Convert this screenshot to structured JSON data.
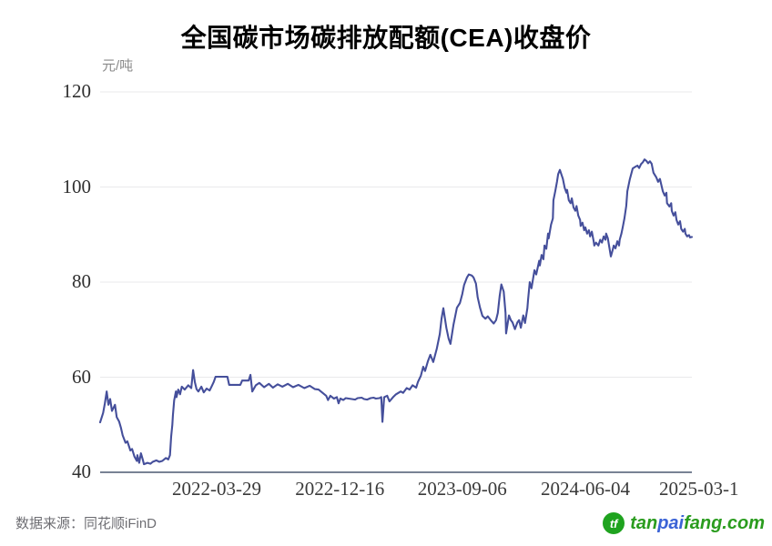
{
  "header": {
    "title": "全国碳市场碳排放配额(CEA)收盘价"
  },
  "chart_data": {
    "type": "line",
    "title": "全国碳市场碳排放配额(CEA)收盘价",
    "unit_label": "元/吨",
    "ylabel": "元/吨",
    "ylim": [
      40,
      120
    ],
    "yticks": [
      120,
      100,
      80,
      60,
      40
    ],
    "grid": true,
    "legend": "none",
    "line_color": "#454f9b",
    "grid_color": "#e9e9eb",
    "axis_color": "#4b5870",
    "xticks": [
      {
        "label": "2022-03-29",
        "pos": 0.197
      },
      {
        "label": "2022-12-16",
        "pos": 0.405
      },
      {
        "label": "2023-09-06",
        "pos": 0.612
      },
      {
        "label": "2024-06-04",
        "pos": 0.82
      },
      {
        "label": "2025-03-1",
        "pos": 1.012
      }
    ],
    "series": [
      {
        "name": "CEA收盘价",
        "x_encoding": "fraction of time axis (2021-07-16 → 2025-03)",
        "points": [
          [
            0,
            50.5
          ],
          [
            0.005,
            52.5
          ],
          [
            0.008,
            54.5
          ],
          [
            0.011,
            57
          ],
          [
            0.014,
            54.2
          ],
          [
            0.017,
            55.4
          ],
          [
            0.02,
            52.9
          ],
          [
            0.025,
            54.2
          ],
          [
            0.028,
            51.6
          ],
          [
            0.032,
            50.7
          ],
          [
            0.035,
            49.4
          ],
          [
            0.038,
            47.8
          ],
          [
            0.043,
            46.2
          ],
          [
            0.046,
            46.5
          ],
          [
            0.051,
            44.6
          ],
          [
            0.054,
            44.9
          ],
          [
            0.058,
            43.3
          ],
          [
            0.062,
            42.4
          ],
          [
            0.063,
            43.6
          ],
          [
            0.066,
            42
          ],
          [
            0.069,
            44
          ],
          [
            0.072,
            42.7
          ],
          [
            0.074,
            41.7
          ],
          [
            0.08,
            42
          ],
          [
            0.085,
            41.8
          ],
          [
            0.089,
            42.2
          ],
          [
            0.095,
            42.5
          ],
          [
            0.1,
            42.2
          ],
          [
            0.105,
            42.4
          ],
          [
            0.111,
            43
          ],
          [
            0.115,
            42.7
          ],
          [
            0.118,
            43.6
          ],
          [
            0.12,
            47.5
          ],
          [
            0.122,
            50
          ],
          [
            0.123,
            51.9
          ],
          [
            0.125,
            55.1
          ],
          [
            0.128,
            57
          ],
          [
            0.129,
            55.8
          ],
          [
            0.132,
            57.4
          ],
          [
            0.135,
            56.4
          ],
          [
            0.138,
            58
          ],
          [
            0.143,
            57.4
          ],
          [
            0.149,
            58.3
          ],
          [
            0.154,
            57.7
          ],
          [
            0.157,
            61.5
          ],
          [
            0.16,
            59
          ],
          [
            0.163,
            57.5
          ],
          [
            0.166,
            57
          ],
          [
            0.171,
            58
          ],
          [
            0.175,
            56.8
          ],
          [
            0.18,
            57.6
          ],
          [
            0.185,
            57.2
          ],
          [
            0.189,
            58.2
          ],
          [
            0.192,
            59
          ],
          [
            0.195,
            60.1
          ],
          [
            0.215,
            60.1
          ],
          [
            0.218,
            58.4
          ],
          [
            0.237,
            58.4
          ],
          [
            0.24,
            59.3
          ],
          [
            0.251,
            59.3
          ],
          [
            0.254,
            60.5
          ],
          [
            0.257,
            57
          ],
          [
            0.263,
            58.3
          ],
          [
            0.269,
            58.8
          ],
          [
            0.277,
            57.9
          ],
          [
            0.285,
            58.6
          ],
          [
            0.292,
            57.8
          ],
          [
            0.3,
            58.5
          ],
          [
            0.308,
            58
          ],
          [
            0.317,
            58.6
          ],
          [
            0.326,
            57.9
          ],
          [
            0.335,
            58.4
          ],
          [
            0.345,
            57.7
          ],
          [
            0.354,
            58.2
          ],
          [
            0.363,
            57.5
          ],
          [
            0.369,
            57.4
          ],
          [
            0.382,
            56.1
          ],
          [
            0.385,
            55.2
          ],
          [
            0.389,
            56.1
          ],
          [
            0.395,
            55.5
          ],
          [
            0.4,
            55.8
          ],
          [
            0.403,
            54.5
          ],
          [
            0.406,
            55.5
          ],
          [
            0.411,
            55.2
          ],
          [
            0.415,
            55.6
          ],
          [
            0.42,
            55.5
          ],
          [
            0.425,
            55.4
          ],
          [
            0.431,
            55.3
          ],
          [
            0.435,
            55.6
          ],
          [
            0.442,
            55.7
          ],
          [
            0.446,
            55.4
          ],
          [
            0.451,
            55.3
          ],
          [
            0.457,
            55.6
          ],
          [
            0.462,
            55.7
          ],
          [
            0.466,
            55.5
          ],
          [
            0.472,
            55.6
          ],
          [
            0.475,
            55.8
          ],
          [
            0.477,
            50.6
          ],
          [
            0.48,
            55.8
          ],
          [
            0.485,
            56.1
          ],
          [
            0.489,
            54.9
          ],
          [
            0.495,
            55.8
          ],
          [
            0.5,
            56.4
          ],
          [
            0.508,
            57
          ],
          [
            0.512,
            56.7
          ],
          [
            0.518,
            57.7
          ],
          [
            0.523,
            57.4
          ],
          [
            0.528,
            58.3
          ],
          [
            0.534,
            57.8
          ],
          [
            0.537,
            59
          ],
          [
            0.542,
            60.3
          ],
          [
            0.546,
            62.2
          ],
          [
            0.549,
            61.3
          ],
          [
            0.554,
            63.4
          ],
          [
            0.558,
            64.7
          ],
          [
            0.563,
            63.2
          ],
          [
            0.569,
            66
          ],
          [
            0.574,
            69.1
          ],
          [
            0.577,
            72.3
          ],
          [
            0.58,
            74.5
          ],
          [
            0.585,
            70.4
          ],
          [
            0.589,
            68.1
          ],
          [
            0.592,
            67
          ],
          [
            0.597,
            71
          ],
          [
            0.603,
            74.6
          ],
          [
            0.608,
            75.6
          ],
          [
            0.612,
            77.5
          ],
          [
            0.615,
            79.4
          ],
          [
            0.62,
            81
          ],
          [
            0.623,
            81.6
          ],
          [
            0.628,
            81.4
          ],
          [
            0.631,
            81
          ],
          [
            0.635,
            79.7
          ],
          [
            0.638,
            76.8
          ],
          [
            0.642,
            74.6
          ],
          [
            0.646,
            72.9
          ],
          [
            0.651,
            72.3
          ],
          [
            0.655,
            72.8
          ],
          [
            0.66,
            72
          ],
          [
            0.665,
            71.3
          ],
          [
            0.669,
            72
          ],
          [
            0.672,
            73.5
          ],
          [
            0.675,
            77
          ],
          [
            0.678,
            79.5
          ],
          [
            0.682,
            78
          ],
          [
            0.685,
            73.5
          ],
          [
            0.686,
            69.2
          ],
          [
            0.689,
            71.5
          ],
          [
            0.691,
            73
          ],
          [
            0.694,
            72
          ],
          [
            0.697,
            71.5
          ],
          [
            0.701,
            70.1
          ],
          [
            0.705,
            71.5
          ],
          [
            0.708,
            72
          ],
          [
            0.711,
            70.4
          ],
          [
            0.715,
            73
          ],
          [
            0.718,
            71.4
          ],
          [
            0.722,
            74.5
          ],
          [
            0.723,
            76.2
          ],
          [
            0.726,
            80
          ],
          [
            0.729,
            78.7
          ],
          [
            0.734,
            82.5
          ],
          [
            0.737,
            81.6
          ],
          [
            0.742,
            84.5
          ],
          [
            0.743,
            83.5
          ],
          [
            0.746,
            85.7
          ],
          [
            0.749,
            84.8
          ],
          [
            0.751,
            87.7
          ],
          [
            0.754,
            87
          ],
          [
            0.757,
            90.2
          ],
          [
            0.758,
            89.2
          ],
          [
            0.762,
            92.1
          ],
          [
            0.765,
            93.4
          ],
          [
            0.766,
            97.2
          ],
          [
            0.769,
            99.1
          ],
          [
            0.772,
            101.1
          ],
          [
            0.774,
            102.7
          ],
          [
            0.777,
            103.6
          ],
          [
            0.782,
            101.7
          ],
          [
            0.785,
            99.8
          ],
          [
            0.788,
            98.8
          ],
          [
            0.789,
            99.4
          ],
          [
            0.792,
            97.2
          ],
          [
            0.795,
            96.6
          ],
          [
            0.797,
            97.6
          ],
          [
            0.8,
            95.7
          ],
          [
            0.803,
            95
          ],
          [
            0.805,
            96
          ],
          [
            0.808,
            94
          ],
          [
            0.811,
            93.1
          ],
          [
            0.812,
            91.8
          ],
          [
            0.815,
            92.5
          ],
          [
            0.818,
            90.9
          ],
          [
            0.82,
            91.5
          ],
          [
            0.823,
            90.2
          ],
          [
            0.826,
            90.9
          ],
          [
            0.828,
            89.6
          ],
          [
            0.831,
            90.6
          ],
          [
            0.834,
            88.6
          ],
          [
            0.835,
            87.7
          ],
          [
            0.838,
            88.3
          ],
          [
            0.842,
            87.7
          ],
          [
            0.845,
            88.9
          ],
          [
            0.848,
            88.3
          ],
          [
            0.851,
            89.6
          ],
          [
            0.854,
            88.9
          ],
          [
            0.855,
            90.2
          ],
          [
            0.858,
            89.2
          ],
          [
            0.86,
            87.7
          ],
          [
            0.863,
            85.4
          ],
          [
            0.866,
            86.7
          ],
          [
            0.868,
            87.7
          ],
          [
            0.871,
            87.1
          ],
          [
            0.874,
            88.6
          ],
          [
            0.877,
            87.7
          ],
          [
            0.878,
            88.9
          ],
          [
            0.881,
            90.2
          ],
          [
            0.883,
            91.5
          ],
          [
            0.886,
            93.4
          ],
          [
            0.889,
            96
          ],
          [
            0.891,
            99.1
          ],
          [
            0.895,
            101.6
          ],
          [
            0.9,
            103.9
          ],
          [
            0.905,
            104.3
          ],
          [
            0.908,
            104.5
          ],
          [
            0.911,
            104
          ],
          [
            0.914,
            104.8
          ],
          [
            0.917,
            105.2
          ],
          [
            0.92,
            105.8
          ],
          [
            0.923,
            105.5
          ],
          [
            0.926,
            105
          ],
          [
            0.929,
            105.4
          ],
          [
            0.932,
            104.9
          ],
          [
            0.935,
            103
          ],
          [
            0.94,
            102
          ],
          [
            0.943,
            101.1
          ],
          [
            0.946,
            101.7
          ],
          [
            0.951,
            99.1
          ],
          [
            0.954,
            98.2
          ],
          [
            0.957,
            98.8
          ],
          [
            0.958,
            96.6
          ],
          [
            0.962,
            95.9
          ],
          [
            0.965,
            96.6
          ],
          [
            0.966,
            95
          ],
          [
            0.969,
            94
          ],
          [
            0.972,
            94.7
          ],
          [
            0.974,
            93.1
          ],
          [
            0.977,
            92.1
          ],
          [
            0.98,
            92.8
          ],
          [
            0.982,
            91.2
          ],
          [
            0.985,
            90.6
          ],
          [
            0.988,
            91.2
          ],
          [
            0.989,
            90.2
          ],
          [
            0.992,
            89.6
          ],
          [
            0.995,
            89.9
          ],
          [
            0.997,
            89.4
          ],
          [
            1,
            89.5
          ]
        ]
      }
    ]
  },
  "footer": {
    "source": "数据来源：同花顺iFinD",
    "logo": {
      "icon_text": "tf",
      "text_parts": [
        {
          "text": "tan",
          "color": "#2a9c1e"
        },
        {
          "text": "pai",
          "color": "#3b63d6"
        },
        {
          "text": "fang.com",
          "color": "#2a9c1e"
        }
      ],
      "badge_color": "#1fa31f"
    }
  }
}
